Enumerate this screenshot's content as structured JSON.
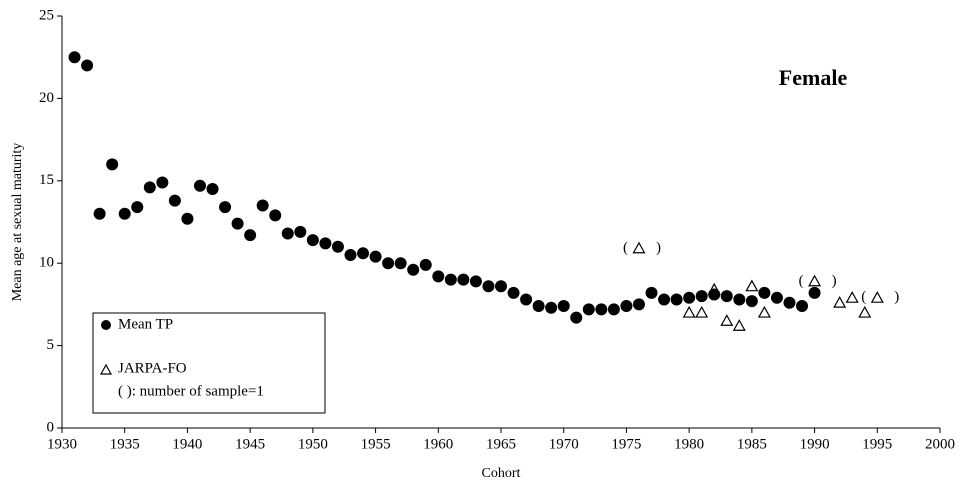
{
  "chart_data": {
    "type": "scatter",
    "annotation": "Female",
    "x_label": "Cohort",
    "y_label": "Mean age at sexual maturity",
    "xlim": [
      1930,
      2000
    ],
    "xticks": [
      1930,
      1935,
      1940,
      1945,
      1950,
      1955,
      1960,
      1965,
      1970,
      1975,
      1980,
      1985,
      1990,
      1995,
      2000
    ],
    "ylim": [
      0,
      25
    ],
    "yticks": [
      0,
      5,
      10,
      15,
      20,
      25
    ],
    "grid": false,
    "legend_position": "lower-left",
    "legend_note": "( ): number of sample=1",
    "marker_brackets": [
      "(",
      ")"
    ],
    "series": [
      {
        "name": "Mean TP",
        "color": "#000000",
        "marker": "circle",
        "x": [
          1931,
          1932,
          1933,
          1934,
          1935,
          1936,
          1937,
          1938,
          1939,
          1940,
          1941,
          1942,
          1943,
          1944,
          1945,
          1946,
          1947,
          1948,
          1949,
          1950,
          1951,
          1952,
          1953,
          1954,
          1955,
          1956,
          1957,
          1958,
          1959,
          1960,
          1961,
          1962,
          1963,
          1964,
          1965,
          1966,
          1967,
          1968,
          1969,
          1970,
          1971,
          1972,
          1973,
          1974,
          1975,
          1976,
          1977,
          1978,
          1979,
          1980,
          1981,
          1982,
          1983,
          1984,
          1985,
          1986,
          1987,
          1988,
          1989,
          1990
        ],
        "values": [
          22.5,
          22.0,
          13.0,
          16.0,
          13.0,
          13.4,
          14.6,
          14.9,
          13.8,
          12.7,
          14.7,
          14.5,
          13.4,
          12.4,
          11.7,
          13.5,
          12.9,
          11.8,
          11.9,
          11.4,
          11.2,
          11.0,
          10.5,
          10.6,
          10.4,
          10.0,
          10.0,
          9.6,
          9.9,
          9.2,
          9.0,
          9.0,
          8.9,
          8.6,
          8.6,
          8.2,
          7.8,
          7.4,
          7.3,
          7.4,
          6.7,
          7.2,
          7.2,
          7.2,
          7.4,
          7.5,
          8.2,
          7.8,
          7.8,
          7.9,
          8.0,
          8.1,
          8.0,
          7.8,
          7.7,
          8.2,
          7.9,
          7.6,
          7.4,
          8.2
        ]
      },
      {
        "name": "JARPA-FO",
        "color": "#000000",
        "marker": "triangle-open",
        "x": [
          1976,
          1980,
          1981,
          1982,
          1983,
          1984,
          1985,
          1986,
          1990,
          1992,
          1993,
          1994,
          1995
        ],
        "values": [
          10.9,
          7.0,
          7.0,
          8.4,
          6.5,
          6.2,
          8.6,
          7.0,
          8.9,
          7.6,
          7.9,
          7.0,
          7.9
        ],
        "single_sample": [
          true,
          false,
          false,
          false,
          false,
          false,
          false,
          false,
          true,
          false,
          false,
          false,
          true
        ]
      }
    ]
  }
}
